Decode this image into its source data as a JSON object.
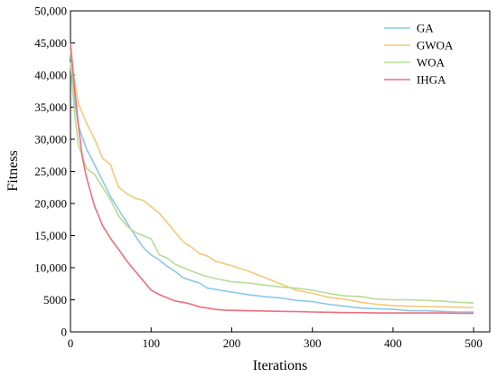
{
  "chart_data": {
    "type": "line",
    "title": "",
    "xlabel": "Iterations",
    "ylabel": "Fitness",
    "xlim": [
      0,
      520
    ],
    "ylim": [
      0,
      50000
    ],
    "xticks": [
      0,
      100,
      200,
      300,
      400,
      500
    ],
    "xtick_labels": [
      "0",
      "100",
      "200",
      "300",
      "400",
      "500"
    ],
    "yticks": [
      0,
      5000,
      10000,
      15000,
      20000,
      25000,
      30000,
      35000,
      40000,
      45000,
      50000
    ],
    "ytick_labels": [
      "0",
      "5000",
      "10,000",
      "15,000",
      "20,000",
      "25,000",
      "30,000",
      "35,000",
      "40,000",
      "45,000",
      "50,000"
    ],
    "grid": false,
    "legend_position": "top-right",
    "series": [
      {
        "name": "GA",
        "color": "#8ec8e8",
        "x": [
          0,
          5,
          10,
          20,
          30,
          40,
          50,
          60,
          70,
          80,
          90,
          100,
          110,
          120,
          130,
          140,
          150,
          160,
          170,
          180,
          200,
          220,
          240,
          260,
          280,
          300,
          320,
          340,
          360,
          380,
          400,
          420,
          440,
          460,
          480,
          500
        ],
        "y": [
          44000,
          36000,
          32000,
          28500,
          26000,
          23500,
          21000,
          19000,
          17000,
          15000,
          13200,
          12000,
          11200,
          10200,
          9400,
          8400,
          8000,
          7600,
          6800,
          6600,
          6200,
          5800,
          5500,
          5300,
          4900,
          4700,
          4300,
          4000,
          3700,
          3600,
          3500,
          3300,
          3300,
          3200,
          3100,
          3100
        ]
      },
      {
        "name": "GWOA",
        "color": "#f5c978",
        "x": [
          0,
          5,
          10,
          20,
          30,
          40,
          45,
          50,
          55,
          60,
          70,
          80,
          90,
          100,
          110,
          120,
          130,
          140,
          150,
          160,
          170,
          180,
          200,
          220,
          240,
          260,
          280,
          300,
          320,
          340,
          360,
          380,
          400,
          420,
          440,
          460,
          480,
          500
        ],
        "y": [
          44000,
          39000,
          35500,
          32500,
          30000,
          27000,
          26500,
          26000,
          24000,
          22500,
          21500,
          20800,
          20500,
          19500,
          18500,
          17000,
          15500,
          14000,
          13200,
          12200,
          11800,
          11000,
          10300,
          9500,
          8500,
          7500,
          6500,
          6000,
          5400,
          5100,
          4600,
          4300,
          4100,
          4000,
          3950,
          3900,
          3850,
          3800
        ]
      },
      {
        "name": "WOA",
        "color": "#b7dd97",
        "x": [
          0,
          5,
          10,
          20,
          30,
          40,
          50,
          60,
          70,
          80,
          90,
          100,
          110,
          120,
          130,
          140,
          150,
          160,
          170,
          180,
          200,
          220,
          240,
          260,
          280,
          300,
          320,
          340,
          360,
          380,
          400,
          420,
          440,
          460,
          480,
          500
        ],
        "y": [
          42000,
          34000,
          29000,
          25500,
          24500,
          22500,
          20500,
          18000,
          16500,
          15500,
          15000,
          14500,
          12000,
          11500,
          10500,
          10000,
          9500,
          9000,
          8600,
          8300,
          7800,
          7600,
          7300,
          7000,
          6800,
          6500,
          6000,
          5600,
          5500,
          5100,
          5000,
          5000,
          4900,
          4800,
          4600,
          4500
        ]
      },
      {
        "name": "IHGA",
        "color": "#ee6f80",
        "x": [
          0,
          5,
          10,
          15,
          20,
          30,
          40,
          50,
          60,
          70,
          80,
          90,
          100,
          110,
          120,
          130,
          140,
          150,
          160,
          170,
          180,
          190,
          200,
          220,
          240,
          260,
          280,
          300,
          320,
          340,
          360,
          380,
          400,
          420,
          440,
          460,
          480,
          500
        ],
        "y": [
          45000,
          38000,
          32000,
          27000,
          24000,
          19500,
          16500,
          14500,
          12800,
          11000,
          9500,
          8000,
          6500,
          5800,
          5300,
          4800,
          4600,
          4300,
          3900,
          3700,
          3500,
          3400,
          3350,
          3300,
          3250,
          3200,
          3150,
          3100,
          3050,
          3000,
          3000,
          2950,
          2950,
          2950,
          2950,
          2950,
          2900,
          2900
        ]
      }
    ]
  }
}
